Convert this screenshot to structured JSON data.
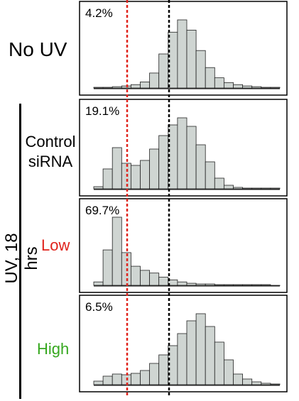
{
  "labels": {
    "no_uv": "No UV",
    "uv_group": "UV, 18 hrs",
    "control_line1": "Control",
    "control_line2": "siRNA",
    "low": "Low",
    "high": "High"
  },
  "colors": {
    "bar_fill": "#cfd5d2",
    "bar_stroke": "#222222",
    "red_line": "#e0231c",
    "black_line": "#000000",
    "low_label": "#e0231c",
    "high_label": "#36a81f"
  },
  "chart_data": [
    {
      "type": "histogram",
      "panel": "No UV",
      "annotation": "4.2%",
      "bin_centers": [
        0.05,
        0.1,
        0.15,
        0.2,
        0.25,
        0.3,
        0.35,
        0.4,
        0.45,
        0.5,
        0.55,
        0.6,
        0.65,
        0.7,
        0.75,
        0.8,
        0.85,
        0.9,
        0.95,
        1.0
      ],
      "values": [
        0.01,
        0.01,
        0.02,
        0.03,
        0.05,
        0.09,
        0.22,
        0.5,
        0.82,
        1.0,
        0.85,
        0.55,
        0.3,
        0.15,
        0.08,
        0.05,
        0.03,
        0.02,
        0.01,
        0.01
      ]
    },
    {
      "type": "histogram",
      "panel": "Control siRNA",
      "annotation": "19.1%",
      "bin_centers": [
        0.05,
        0.1,
        0.15,
        0.2,
        0.25,
        0.3,
        0.35,
        0.4,
        0.45,
        0.5,
        0.55,
        0.6,
        0.65,
        0.7,
        0.75,
        0.8,
        0.85,
        0.9,
        0.95,
        1.0
      ],
      "values": [
        0.03,
        0.28,
        0.58,
        0.36,
        0.33,
        0.4,
        0.56,
        0.75,
        0.9,
        1.0,
        0.88,
        0.62,
        0.38,
        0.15,
        0.05,
        0.02,
        0.01,
        0.01,
        0.01,
        0.01
      ]
    },
    {
      "type": "histogram",
      "panel": "Low",
      "annotation": "69.7%",
      "bin_centers": [
        0.05,
        0.1,
        0.15,
        0.2,
        0.25,
        0.3,
        0.35,
        0.4,
        0.45,
        0.5,
        0.55,
        0.6,
        0.65,
        0.7,
        0.75,
        0.8,
        0.85,
        0.9,
        0.95,
        1.0
      ],
      "values": [
        0.05,
        0.52,
        1.0,
        0.48,
        0.28,
        0.22,
        0.18,
        0.12,
        0.08,
        0.05,
        0.03,
        0.02,
        0.02,
        0.01,
        0.01,
        0.01,
        0.01,
        0.01,
        0.01,
        0.0
      ]
    },
    {
      "type": "histogram",
      "panel": "High",
      "annotation": "6.5%",
      "bin_centers": [
        0.05,
        0.1,
        0.15,
        0.2,
        0.25,
        0.3,
        0.35,
        0.4,
        0.45,
        0.5,
        0.55,
        0.6,
        0.65,
        0.7,
        0.75,
        0.8,
        0.85,
        0.9,
        0.95,
        1.0
      ],
      "values": [
        0.05,
        0.12,
        0.15,
        0.14,
        0.16,
        0.2,
        0.3,
        0.42,
        0.55,
        0.72,
        0.9,
        1.0,
        0.82,
        0.6,
        0.35,
        0.15,
        0.08,
        0.04,
        0.02,
        0.01
      ]
    }
  ]
}
